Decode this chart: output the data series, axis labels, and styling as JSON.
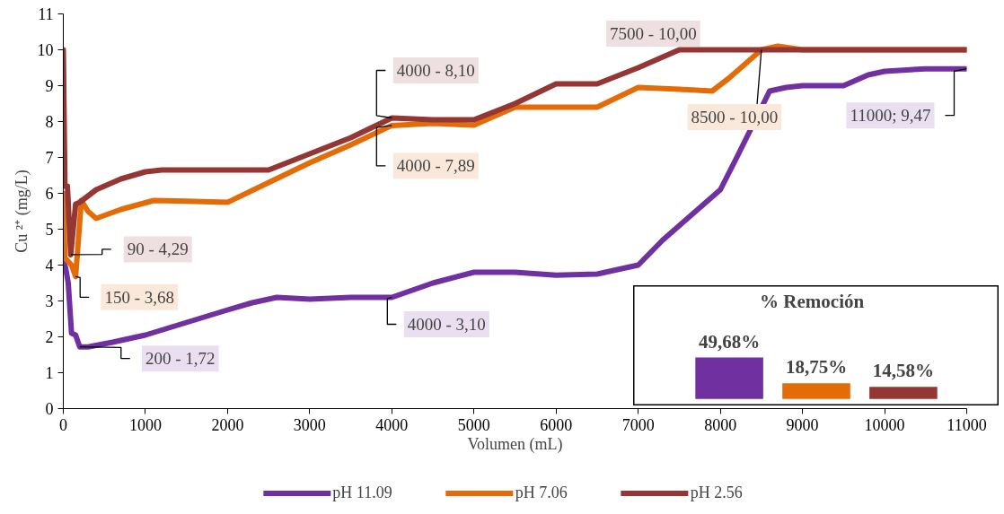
{
  "chart_data": [
    {
      "type": "line",
      "xlabel": "Volumen (mL)",
      "ylabel": "Cu ²⁺ (mg/L)",
      "xlim": [
        0,
        11000
      ],
      "ylim": [
        0,
        11
      ],
      "xticks": [
        0,
        1000,
        2000,
        3000,
        4000,
        5000,
        6000,
        7000,
        8000,
        9000,
        10000,
        11000
      ],
      "yticks": [
        0,
        1,
        2,
        3,
        4,
        5,
        6,
        7,
        8,
        9,
        10,
        11
      ],
      "grid": false,
      "legend": "bottom",
      "series": [
        {
          "name": "pH 11.09",
          "color": "#7030a0",
          "x": [
            0,
            30,
            60,
            100,
            150,
            200,
            300,
            600,
            1000,
            1500,
            2000,
            2300,
            2600,
            3000,
            3500,
            4000,
            4500,
            5000,
            5500,
            6000,
            6500,
            7000,
            7300,
            7600,
            8000,
            8200,
            8600,
            8800,
            9000,
            9500,
            9800,
            10000,
            10500,
            11000
          ],
          "values": [
            4.15,
            3.9,
            3.5,
            2.1,
            2.05,
            1.72,
            1.72,
            1.85,
            2.05,
            2.4,
            2.75,
            2.95,
            3.1,
            3.05,
            3.1,
            3.1,
            3.5,
            3.8,
            3.8,
            3.72,
            3.75,
            4.0,
            4.7,
            5.3,
            6.1,
            7.0,
            8.85,
            8.95,
            9.0,
            9.0,
            9.3,
            9.4,
            9.47,
            9.47
          ]
        },
        {
          "name": "pH 7.06",
          "color": "#e36c09",
          "x": [
            0,
            20,
            60,
            100,
            150,
            220,
            300,
            400,
            700,
            1100,
            1500,
            2000,
            2500,
            3000,
            3500,
            4000,
            4500,
            5000,
            5500,
            6000,
            6500,
            7000,
            7500,
            7900,
            8100,
            8300,
            8500,
            8700,
            9000,
            10000,
            11000
          ],
          "values": [
            6.0,
            4.2,
            4.1,
            4.0,
            3.68,
            5.8,
            5.5,
            5.3,
            5.55,
            5.8,
            5.78,
            5.75,
            6.3,
            6.85,
            7.35,
            7.89,
            7.95,
            7.9,
            8.4,
            8.4,
            8.4,
            8.95,
            8.9,
            8.85,
            9.2,
            9.6,
            10.0,
            10.1,
            10.0,
            10.0,
            10.0
          ]
        },
        {
          "name": "pH 2.56",
          "color": "#943634",
          "x": [
            0,
            20,
            50,
            90,
            150,
            200,
            400,
            700,
            1000,
            1200,
            2000,
            2500,
            3000,
            3500,
            4000,
            4500,
            5000,
            5500,
            6000,
            6500,
            7000,
            7500,
            8000,
            9000,
            10000,
            11000
          ],
          "values": [
            10.0,
            6.2,
            6.2,
            4.29,
            5.7,
            5.75,
            6.1,
            6.4,
            6.6,
            6.65,
            6.65,
            6.65,
            7.1,
            7.55,
            8.1,
            8.05,
            8.05,
            8.5,
            9.05,
            9.05,
            9.5,
            10.0,
            10.0,
            10.0,
            10.0,
            10.0
          ]
        }
      ],
      "annotations": [
        {
          "text": "90 - 4,29",
          "x": 90,
          "y": 4.29
        },
        {
          "text": "150 - 3,68",
          "x": 150,
          "y": 3.68
        },
        {
          "text": "200 - 1,72",
          "x": 200,
          "y": 1.72
        },
        {
          "text": "4000 - 8,10",
          "x": 4000,
          "y": 8.1
        },
        {
          "text": "4000 - 7,89",
          "x": 4000,
          "y": 7.89
        },
        {
          "text": "4000 - 3,10",
          "x": 4000,
          "y": 3.1
        },
        {
          "text": "7500 - 10,00",
          "x": 7500,
          "y": 10.0
        },
        {
          "text": "8500 - 10,00",
          "x": 8500,
          "y": 10.0
        },
        {
          "text": "11000; 9,47",
          "x": 11000,
          "y": 9.47
        }
      ]
    },
    {
      "type": "bar",
      "title": "% Remoción",
      "categories": [
        null,
        null,
        null
      ],
      "values": [
        49.68,
        18.75,
        14.58
      ],
      "colors": [
        "#7030a0",
        "#e36c09",
        "#943634"
      ],
      "value_labels": [
        "49,68%",
        "18,75%",
        "14,58%"
      ]
    }
  ]
}
